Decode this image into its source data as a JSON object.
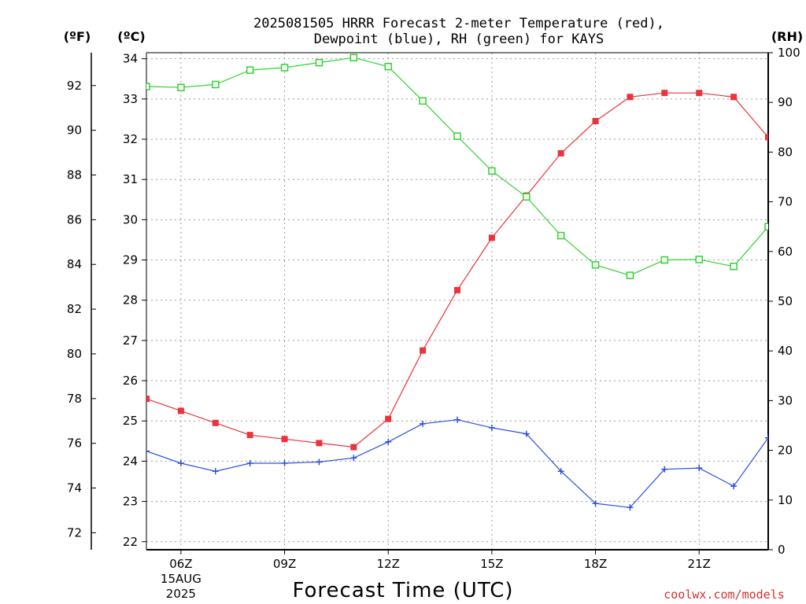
{
  "chart_data": {
    "type": "line",
    "title_line1": "2025081505 HRRR Forecast 2-meter Temperature (red),",
    "title_line2": "Dewpoint (blue), RH (green) for KAYS",
    "xlabel": "Forecast Time (UTC)",
    "credit": "coolwx.com/models",
    "units": {
      "far": "(ºF)",
      "cel": "(ºC)",
      "rh": "(RH)"
    },
    "x_hours": [
      5,
      6,
      7,
      8,
      9,
      10,
      11,
      12,
      13,
      14,
      15,
      16,
      17,
      18,
      19,
      20,
      21,
      22,
      23
    ],
    "x_ticks": [
      {
        "hour": 6,
        "label": "06Z",
        "sub1": "15AUG",
        "sub2": "2025"
      },
      {
        "hour": 9,
        "label": "09Z"
      },
      {
        "hour": 12,
        "label": "12Z"
      },
      {
        "hour": 15,
        "label": "15Z"
      },
      {
        "hour": 18,
        "label": "18Z"
      },
      {
        "hour": 21,
        "label": "21Z"
      }
    ],
    "celsius_ticks": [
      "22",
      "23",
      "24",
      "25",
      "26",
      "27",
      "28",
      "29",
      "30",
      "31",
      "32",
      "33",
      "34"
    ],
    "fahrenheit_ticks": [
      "72",
      "74",
      "76",
      "78",
      "80",
      "82",
      "84",
      "86",
      "88",
      "90",
      "92"
    ],
    "rh_ticks": [
      "0",
      "10",
      "20",
      "30",
      "40",
      "50",
      "60",
      "70",
      "80",
      "90",
      "100"
    ],
    "ylim_celsius": [
      21.8,
      34.15
    ],
    "ylim_rh": [
      0,
      100
    ],
    "series": [
      {
        "name": "Temperature",
        "color": "#e8343a",
        "marker": "filled-square",
        "axis": "celsius",
        "values": [
          25.55,
          25.25,
          24.95,
          24.65,
          24.55,
          24.45,
          24.35,
          25.05,
          26.75,
          28.25,
          29.55,
          30.6,
          31.65,
          32.45,
          33.05,
          33.15,
          33.15,
          33.05,
          32.05
        ]
      },
      {
        "name": "Dewpoint",
        "color": "#2e4fe0",
        "marker": "plus",
        "axis": "celsius",
        "values": [
          24.25,
          23.95,
          23.75,
          23.95,
          23.95,
          23.98,
          24.08,
          24.48,
          24.93,
          25.03,
          24.83,
          24.68,
          23.75,
          22.95,
          22.85,
          23.8,
          23.83,
          23.38,
          24.58
        ]
      },
      {
        "name": "RH",
        "color": "#32d232",
        "marker": "open-square",
        "axis": "rh",
        "values": [
          93.2,
          93.0,
          93.6,
          96.5,
          97.0,
          98.0,
          99.0,
          97.2,
          90.3,
          83.2,
          76.2,
          71.0,
          63.2,
          57.3,
          55.2,
          58.3,
          58.4,
          57.0,
          65.0
        ]
      }
    ]
  }
}
